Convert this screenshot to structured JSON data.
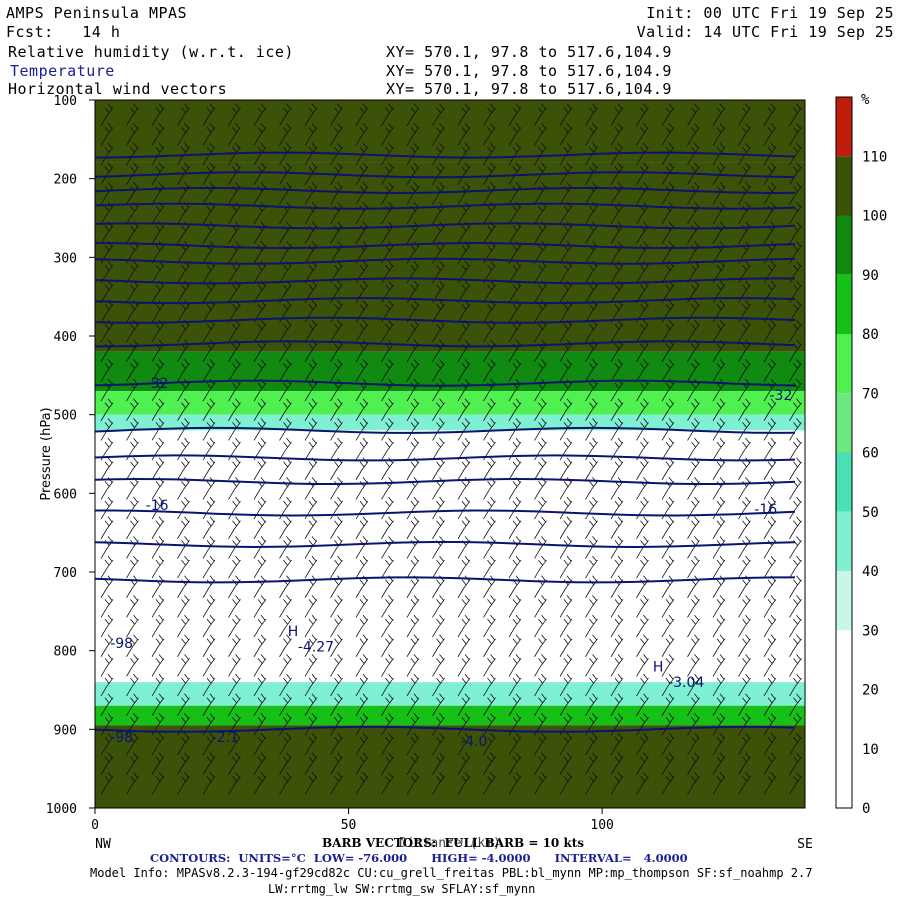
{
  "header": {
    "title": "AMPS Peninsula MPAS",
    "forecast": "Fcst:   14 h",
    "init": "Init: 00 UTC Fri 19 Sep 25",
    "valid": "Valid: 14 UTC Fri 19 Sep 25",
    "fields": [
      {
        "name": "Relative humidity (w.r.t. ice)",
        "xy": "XY= 570.1, 97.8 to 517.6,104.9"
      },
      {
        "name": "Temperature",
        "xy": "XY= 570.1, 97.8 to 517.6,104.9"
      },
      {
        "name": "Horizontal wind vectors",
        "xy": "XY= 570.1, 97.8 to 517.6,104.9"
      }
    ]
  },
  "footer": {
    "barb": "BARB VECTORS:  FULL BARB = 10 kts",
    "contours": "CONTOURS:  UNITS=°C  LOW= -76.000      HIGH= -4.0000      INTERVAL=   4.0000",
    "model_info": "Model Info: MPASv8.2.3-194-gf29cd82c CU:cu_grell_freitas PBL:bl_mynn MP:mp_thompson SF:sf_noahmp 2.7",
    "model_info2": "LW:rrtmg_lw SW:rrtmg_sw SFLAY:sf_mynn"
  },
  "chart_data": {
    "type": "heatmap",
    "title": "Relative humidity (w.r.t. ice), Temperature, Horizontal wind vectors",
    "xlabel": "Distance (km)",
    "ylabel": "Pressure (hPa)",
    "xlim": [
      0,
      140
    ],
    "ylim": [
      1000,
      100
    ],
    "x_ticks": [
      0,
      50,
      100
    ],
    "y_ticks": [
      100,
      200,
      300,
      400,
      500,
      600,
      700,
      800,
      900,
      1000
    ],
    "x_end_labels": {
      "left": "NW",
      "right": "SE"
    },
    "colorbar": {
      "unit": "%",
      "levels": [
        0,
        10,
        20,
        30,
        40,
        50,
        60,
        70,
        80,
        90,
        100,
        110
      ],
      "tick_labels": [
        "110",
        "100",
        "90",
        "80",
        "70",
        "60",
        "50",
        "40",
        "30",
        "20",
        "10",
        "0"
      ],
      "colors": [
        "#ffffff",
        "#ffffff",
        "#ffffff",
        "#c8f6e8",
        "#7ff0d2",
        "#48e0b4",
        "#6ee882",
        "#50f050",
        "#16c016",
        "#108a10",
        "#3c5208",
        "#c01c0a"
      ]
    },
    "rh_layers": [
      {
        "p_top": 100,
        "p_bot": 180,
        "rh": 105
      },
      {
        "p_top": 180,
        "p_bot": 420,
        "rh": 100
      },
      {
        "p_top": 420,
        "p_bot": 470,
        "rh": 95
      },
      {
        "p_top": 470,
        "p_bot": 500,
        "rh": 75
      },
      {
        "p_top": 500,
        "p_bot": 520,
        "rh": 45
      },
      {
        "p_top": 520,
        "p_bot": 840,
        "rh": 10
      },
      {
        "p_top": 840,
        "p_bot": 870,
        "rh": 40
      },
      {
        "p_top": 870,
        "p_bot": 895,
        "rh": 80
      },
      {
        "p_top": 895,
        "p_bot": 1000,
        "rh": 105
      }
    ],
    "isotherms": [
      -76,
      -72,
      -68,
      -64,
      -60,
      -56,
      -52,
      -48,
      -44,
      -40,
      -36,
      -32,
      -28,
      -24,
      -20,
      -16,
      -12,
      -8,
      -4
    ],
    "isotherm_pressures": [
      170,
      195,
      215,
      235,
      260,
      285,
      305,
      330,
      355,
      380,
      410,
      460,
      520,
      555,
      585,
      625,
      665,
      710,
      900
    ],
    "contour_labels": [
      {
        "text": "-32",
        "x": 10,
        "p": 460
      },
      {
        "text": "-32",
        "x": 133,
        "p": 475
      },
      {
        "text": "-16",
        "x": 10,
        "p": 615
      },
      {
        "text": "-16",
        "x": 130,
        "p": 620
      },
      {
        "text": "H",
        "x": 38,
        "p": 775
      },
      {
        "text": "-4.27",
        "x": 40,
        "p": 795
      },
      {
        "text": "-98",
        "x": 3,
        "p": 790
      },
      {
        "text": "H",
        "x": 110,
        "p": 820
      },
      {
        "text": "-3.04",
        "x": 113,
        "p": 840
      },
      {
        "text": "-98",
        "x": 3,
        "p": 910
      },
      {
        "text": "-2.1",
        "x": 23,
        "p": 910
      },
      {
        "text": "-4.0",
        "x": 72,
        "p": 915
      }
    ]
  }
}
